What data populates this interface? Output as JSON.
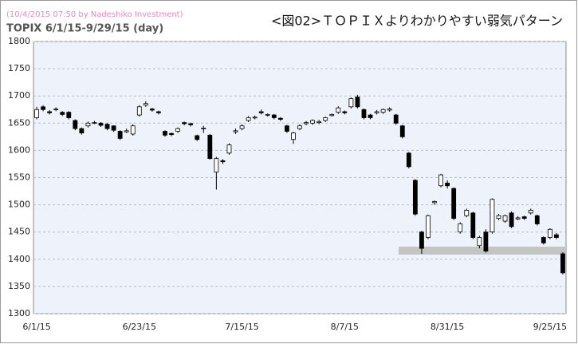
{
  "chart_data": {
    "type": "candlestick",
    "credit": "(10/4/2015 07:50 by Nadeshiko Investment)",
    "subtitle": "TOPIX  6/1/15-9/29/15 (day)",
    "title": "<図02>ＴＯＰＩＸよりわかりやすい弱気パターン",
    "categories": [
      "6/1/15",
      null,
      null,
      null,
      null,
      null,
      null,
      null,
      null,
      null,
      null,
      null,
      null,
      null,
      null,
      null,
      "6/23/15",
      null,
      null,
      null,
      null,
      null,
      null,
      null,
      null,
      null,
      null,
      null,
      null,
      null,
      null,
      null,
      "7/15/15",
      null,
      null,
      null,
      null,
      null,
      null,
      null,
      null,
      null,
      null,
      null,
      null,
      null,
      null,
      null,
      "8/7/15",
      null,
      null,
      null,
      null,
      null,
      null,
      null,
      null,
      null,
      null,
      null,
      null,
      null,
      null,
      null,
      "8/31/15",
      null,
      null,
      null,
      null,
      null,
      null,
      null,
      null,
      null,
      null,
      null,
      null,
      null,
      null,
      null,
      "9/25/15",
      null,
      null
    ],
    "open": [
      1660,
      1680,
      1671,
      1675,
      1670,
      1670,
      1655,
      1640,
      1645,
      1650,
      1650,
      1648,
      1645,
      1635,
      1634,
      1630,
      1665,
      1683,
      1676,
      1671,
      1635,
      1631,
      1635,
      1651,
      1649,
      1627,
      1640,
      1628,
      1560,
      1581,
      1595,
      1634,
      1640,
      1655,
      1660,
      1671,
      1665,
      1665,
      1659,
      1645,
      1620,
      1640,
      1649,
      1650,
      1651,
      1655,
      1664,
      1670,
      1671,
      1680,
      1698,
      1675,
      1665,
      1669,
      1670,
      1674,
      1665,
      1645,
      1595,
      1545,
      1450,
      1440,
      1504,
      1535,
      1540,
      1530,
      1450,
      1480,
      1485,
      1425,
      1450,
      1450,
      1475,
      1470,
      1485,
      1474,
      1478,
      1485,
      1480,
      1440,
      1440,
      1445,
      1410
    ],
    "high": [
      1680,
      1683,
      1674,
      1679,
      1672,
      1672,
      1657,
      1642,
      1653,
      1654,
      1652,
      1650,
      1646,
      1637,
      1640,
      1648,
      1683,
      1690,
      1678,
      1673,
      1637,
      1633,
      1642,
      1653,
      1651,
      1629,
      1645,
      1630,
      1588,
      1584,
      1613,
      1640,
      1648,
      1663,
      1664,
      1675,
      1668,
      1667,
      1661,
      1647,
      1634,
      1648,
      1654,
      1657,
      1656,
      1662,
      1668,
      1681,
      1673,
      1697,
      1702,
      1677,
      1667,
      1674,
      1677,
      1679,
      1667,
      1647,
      1597,
      1547,
      1452,
      1482,
      1508,
      1557,
      1545,
      1532,
      1468,
      1493,
      1487,
      1443,
      1455,
      1512,
      1483,
      1482,
      1488,
      1479,
      1480,
      1493,
      1482,
      1442,
      1457,
      1448,
      1413
    ],
    "low": [
      1657,
      1672,
      1666,
      1672,
      1663,
      1657,
      1637,
      1629,
      1642,
      1648,
      1643,
      1637,
      1634,
      1619,
      1632,
      1627,
      1662,
      1680,
      1671,
      1666,
      1625,
      1626,
      1632,
      1646,
      1644,
      1617,
      1632,
      1583,
      1528,
      1575,
      1592,
      1630,
      1637,
      1652,
      1657,
      1666,
      1662,
      1657,
      1654,
      1632,
      1612,
      1637,
      1646,
      1647,
      1648,
      1652,
      1662,
      1667,
      1666,
      1677,
      1677,
      1657,
      1657,
      1666,
      1667,
      1671,
      1647,
      1622,
      1567,
      1480,
      1410,
      1437,
      1500,
      1532,
      1530,
      1472,
      1447,
      1477,
      1437,
      1420,
      1412,
      1447,
      1472,
      1467,
      1457,
      1472,
      1472,
      1482,
      1462,
      1427,
      1437,
      1437,
      1372
    ],
    "close": [
      1675,
      1675,
      1669,
      1676,
      1666,
      1660,
      1640,
      1632,
      1650,
      1651,
      1646,
      1640,
      1637,
      1622,
      1636,
      1645,
      1680,
      1686,
      1674,
      1669,
      1628,
      1629,
      1640,
      1649,
      1647,
      1620,
      1641,
      1585,
      1585,
      1579,
      1610,
      1636,
      1645,
      1660,
      1661,
      1669,
      1666,
      1660,
      1657,
      1635,
      1632,
      1645,
      1651,
      1655,
      1653,
      1660,
      1666,
      1678,
      1669,
      1695,
      1680,
      1660,
      1660,
      1671,
      1675,
      1676,
      1650,
      1625,
      1570,
      1483,
      1420,
      1480,
      1506,
      1555,
      1535,
      1475,
      1465,
      1490,
      1440,
      1440,
      1415,
      1510,
      1480,
      1480,
      1460,
      1476,
      1475,
      1490,
      1465,
      1430,
      1455,
      1440,
      1375
    ],
    "ylim": [
      1300,
      1800
    ],
    "yticks": [
      1300,
      1350,
      1400,
      1450,
      1500,
      1550,
      1600,
      1650,
      1700,
      1750,
      1800
    ],
    "grid": true,
    "up_color": "#ffffff",
    "down_color": "#000000"
  }
}
